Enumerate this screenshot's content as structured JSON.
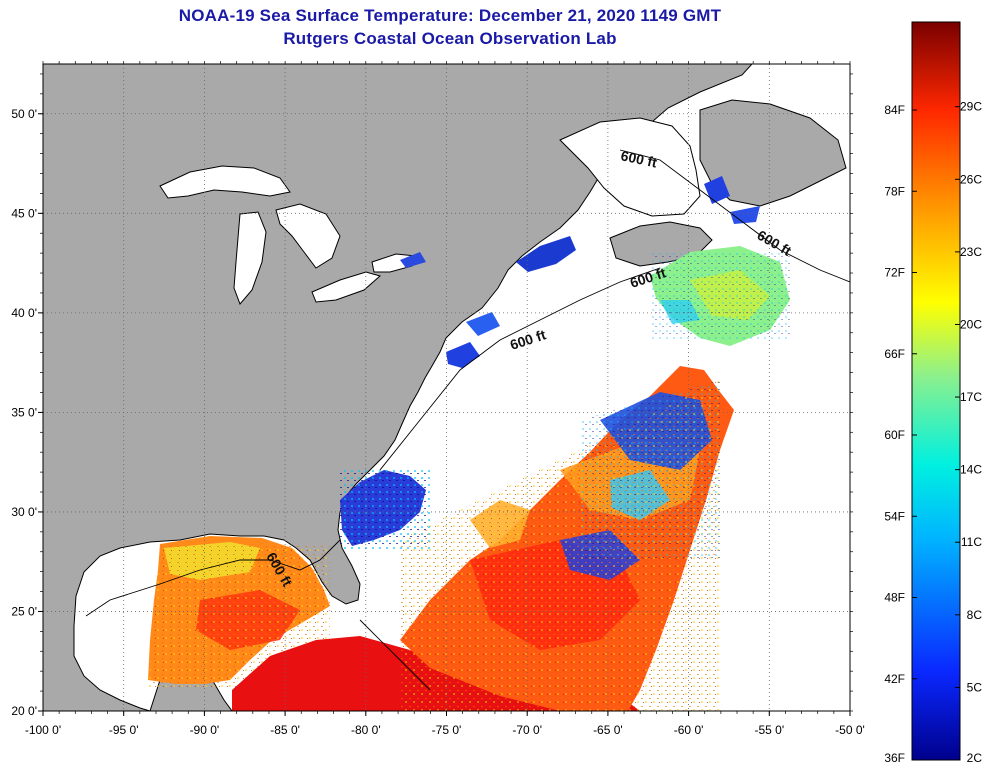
{
  "header": {
    "title_line1": "NOAA-19 Sea Surface Temperature:  December 21, 2020 1149 GMT",
    "title_line2": "Rutgers Coastal Ocean Observation Lab"
  },
  "map": {
    "lon_range": [
      -100,
      -50
    ],
    "lat_range": [
      20,
      52.5
    ],
    "lon_labels": [
      "-100 0'",
      "-95 0'",
      "-90 0'",
      "-85 0'",
      "-80 0'",
      "-75 0'",
      "-70 0'",
      "-65 0'",
      "-60 0'",
      "-55 0'",
      "-50 0'"
    ],
    "lat_labels": [
      "20 0'",
      "25 0'",
      "30 0'",
      "35 0'",
      "40 0'",
      "45 0'",
      "50 0'"
    ],
    "lat_values": [
      20,
      25,
      30,
      35,
      40,
      45,
      50
    ],
    "contour_labels": [
      "600 ft",
      "600 ft",
      "600 ft",
      "600 ft",
      "600 ft"
    ],
    "colors": {
      "land": "#a9a9a9",
      "ocean_nodata": "#ffffff",
      "coast": "#000000",
      "grid": "#666666"
    }
  },
  "colorbar": {
    "fahrenheit_labels": [
      "84F",
      "78F",
      "72F",
      "66F",
      "60F",
      "54F",
      "48F",
      "42F",
      "36F"
    ],
    "celsius_labels": [
      "29C",
      "26C",
      "23C",
      "20C",
      "17C",
      "14C",
      "11C",
      "8C",
      "5C",
      "2C"
    ]
  }
}
